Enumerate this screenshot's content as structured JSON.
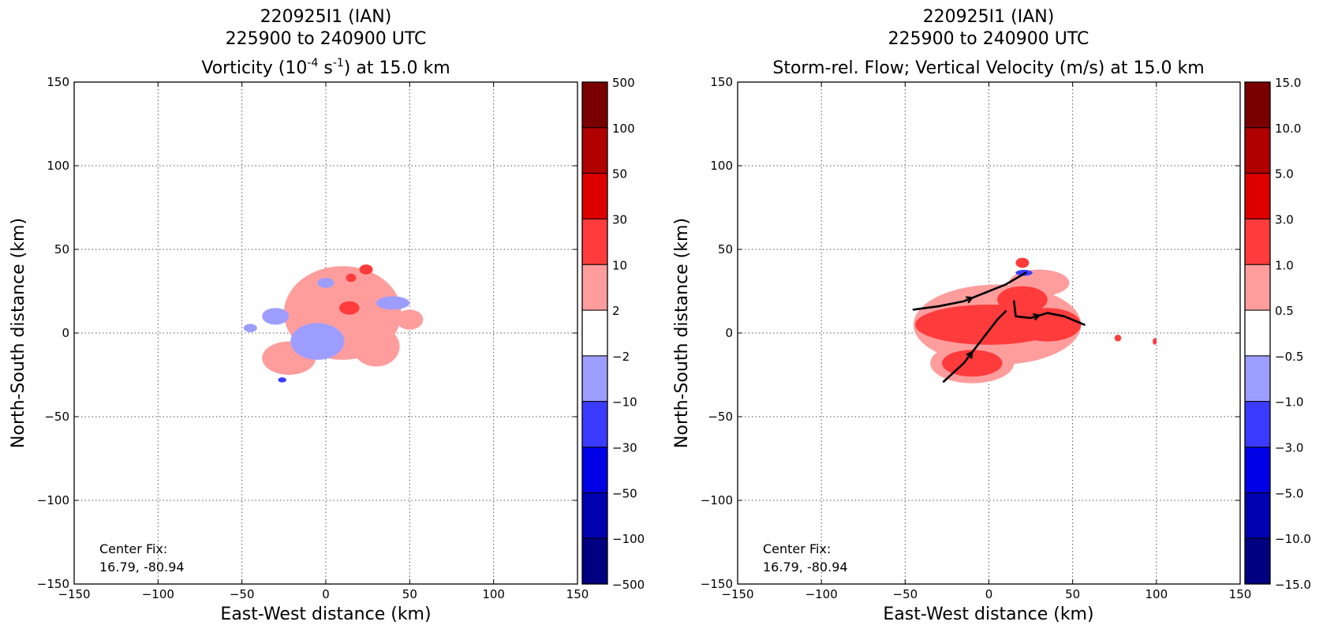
{
  "chart_data": [
    {
      "type": "heatmap",
      "title": "220925I1 (IAN)",
      "subtitle": "225900 to 240900 UTC",
      "subtitle2_parts": {
        "prefix": "Vorticity (10",
        "exp1": "-4",
        "mid": " s",
        "exp2": "-1",
        "suffix": ") at 15.0 km"
      },
      "xlabel": "East-West distance (km)",
      "ylabel": "North-South distance (km)",
      "xlim": [
        -150,
        150
      ],
      "ylim": [
        -150,
        150
      ],
      "xticks": [
        -150,
        -100,
        -50,
        0,
        50,
        100,
        150
      ],
      "yticks": [
        -150,
        -100,
        -50,
        0,
        50,
        100,
        150
      ],
      "grid": true,
      "annotation": {
        "line1": "Center Fix:",
        "line2": "16.79, -80.94"
      },
      "colorbar": {
        "levels": [
          "500",
          "100",
          "50",
          "30",
          "10",
          "2",
          "−2",
          "−10",
          "−30",
          "−50",
          "−100",
          "−500"
        ],
        "colors": [
          "#7a0000",
          "#b00000",
          "#de0000",
          "#ff3b3b",
          "#ff9d9d",
          "#ffffff",
          "#9d9dff",
          "#3b3bff",
          "#0000e6",
          "#0000b0",
          "#000080"
        ]
      },
      "regions": [
        {
          "level": "2 to 10",
          "color": "#ff9d9d",
          "center": [
            10,
            12
          ],
          "radii": [
            35,
            28
          ]
        },
        {
          "level": "2 to 10",
          "color": "#ff9d9d",
          "center": [
            -22,
            -15
          ],
          "radii": [
            16,
            10
          ]
        },
        {
          "level": "2 to 10",
          "color": "#ff9d9d",
          "center": [
            30,
            -8
          ],
          "radii": [
            14,
            12
          ]
        },
        {
          "level": "2 to 10",
          "color": "#ff9d9d",
          "center": [
            50,
            8
          ],
          "radii": [
            8,
            6
          ]
        },
        {
          "level": "10 to 30",
          "color": "#ff3b3b",
          "center": [
            14,
            15
          ],
          "radii": [
            6,
            4
          ]
        },
        {
          "level": "10 to 30",
          "color": "#ff3b3b",
          "center": [
            24,
            38
          ],
          "radii": [
            4,
            3
          ]
        },
        {
          "level": "10 to 30",
          "color": "#ff3b3b",
          "center": [
            15,
            33
          ],
          "radii": [
            3,
            2.5
          ]
        },
        {
          "level": "-10 to -2",
          "color": "#9d9dff",
          "center": [
            -5,
            -5
          ],
          "radii": [
            16,
            11
          ]
        },
        {
          "level": "-10 to -2",
          "color": "#9d9dff",
          "center": [
            -30,
            10
          ],
          "radii": [
            8,
            5
          ]
        },
        {
          "level": "-10 to -2",
          "color": "#9d9dff",
          "center": [
            40,
            18
          ],
          "radii": [
            10,
            4
          ]
        },
        {
          "level": "-10 to -2",
          "color": "#9d9dff",
          "center": [
            0,
            30
          ],
          "radii": [
            5,
            3
          ]
        },
        {
          "level": "-10 to -2",
          "color": "#9d9dff",
          "center": [
            -45,
            3
          ],
          "radii": [
            4,
            2.5
          ]
        },
        {
          "level": "-30 to -10",
          "color": "#3b3bff",
          "center": [
            -26,
            -28
          ],
          "radii": [
            2.5,
            1.5
          ]
        }
      ]
    },
    {
      "type": "heatmap",
      "title": "220925I1 (IAN)",
      "subtitle": "225900 to 240900 UTC",
      "subtitle2": "Storm-rel. Flow; Vertical Velocity (m/s) at 15.0 km",
      "xlabel": "East-West distance (km)",
      "ylabel": "North-South distance (km)",
      "xlim": [
        -150,
        150
      ],
      "ylim": [
        -150,
        150
      ],
      "xticks": [
        -150,
        -100,
        -50,
        0,
        50,
        100,
        150
      ],
      "yticks": [
        -150,
        -100,
        -50,
        0,
        50,
        100,
        150
      ],
      "grid": true,
      "annotation": {
        "line1": "Center Fix:",
        "line2": "16.79, -80.94"
      },
      "colorbar": {
        "levels": [
          "15.0",
          "10.0",
          "5.0",
          "3.0",
          "1.0",
          "0.5",
          "−0.5",
          "−1.0",
          "−3.0",
          "−5.0",
          "−10.0",
          "−15.0"
        ],
        "colors": [
          "#7a0000",
          "#b00000",
          "#de0000",
          "#ff3b3b",
          "#ff9d9d",
          "#ffffff",
          "#9d9dff",
          "#3b3bff",
          "#0000e6",
          "#0000b0",
          "#000080"
        ]
      },
      "regions": [
        {
          "level": "0.5 to 1.0",
          "color": "#ff9d9d",
          "center": [
            5,
            5
          ],
          "radii": [
            50,
            24
          ]
        },
        {
          "level": "0.5 to 1.0",
          "color": "#ff9d9d",
          "center": [
            -10,
            -18
          ],
          "radii": [
            25,
            12
          ]
        },
        {
          "level": "0.5 to 1.0",
          "color": "#ff9d9d",
          "center": [
            30,
            30
          ],
          "radii": [
            18,
            8
          ]
        },
        {
          "level": "1.0 to 3.0",
          "color": "#ff3b3b",
          "center": [
            0,
            5
          ],
          "radii": [
            44,
            12
          ]
        },
        {
          "level": "1.0 to 3.0",
          "color": "#ff3b3b",
          "center": [
            35,
            5
          ],
          "radii": [
            20,
            10
          ]
        },
        {
          "level": "1.0 to 3.0",
          "color": "#ff3b3b",
          "center": [
            -10,
            -18
          ],
          "radii": [
            18,
            8
          ]
        },
        {
          "level": "1.0 to 3.0",
          "color": "#ff3b3b",
          "center": [
            20,
            20
          ],
          "radii": [
            15,
            8
          ]
        },
        {
          "level": "1.0 to 3.0",
          "color": "#ff3b3b",
          "center": [
            20,
            42
          ],
          "radii": [
            4,
            3
          ]
        },
        {
          "level": "1.0 to 3.0",
          "color": "#ff3b3b",
          "center": [
            77,
            -3
          ],
          "radii": [
            2,
            2
          ]
        },
        {
          "level": "1.0 to 3.0",
          "color": "#ff3b3b",
          "center": [
            99,
            -5
          ],
          "radii": [
            1.2,
            2
          ]
        },
        {
          "level": "-3.0 to -1.0",
          "color": "#3b3bff",
          "center": [
            21,
            36
          ],
          "radii": [
            5,
            1.8
          ]
        }
      ],
      "streamlines": [
        [
          [
            -45,
            14
          ],
          [
            -30,
            16
          ],
          [
            -15,
            19
          ],
          [
            -5,
            23
          ],
          [
            10,
            29
          ],
          [
            22,
            36
          ]
        ],
        [
          [
            -27,
            -29
          ],
          [
            -15,
            -18
          ],
          [
            -5,
            -5
          ],
          [
            5,
            8
          ],
          [
            10,
            13
          ]
        ],
        [
          [
            15,
            19
          ],
          [
            16,
            10
          ],
          [
            25,
            9
          ],
          [
            35,
            12
          ],
          [
            45,
            10
          ],
          [
            57,
            5
          ]
        ]
      ]
    }
  ]
}
